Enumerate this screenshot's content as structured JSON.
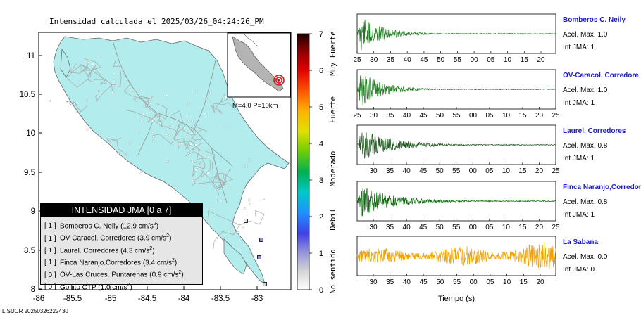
{
  "header": {
    "title": "Intensidad calculada el 2025/03/26_04:24:26_PM"
  },
  "footer": {
    "code": "LISUCR 20250326222430"
  },
  "map": {
    "lat_ticks": [
      "11",
      "10.5",
      "10",
      "9.5",
      "9",
      "8.5",
      "8"
    ],
    "lon_ticks": [
      "-86",
      "-85.5",
      "-85",
      "-84.5",
      "-84",
      "-83.5",
      "-83"
    ],
    "inset_label": "M=4.0 P=10km",
    "land_color": "#b2ecec",
    "road_color": "#a8a8a8",
    "epicenter_color": "#e01010"
  },
  "colorbar": {
    "ticks": [
      "0",
      "1",
      "2",
      "3",
      "4",
      "5",
      "6",
      "7"
    ],
    "category_labels": [
      "No sentido",
      "Debil",
      "Moderado",
      "Fuerte",
      "Muy Fuerte"
    ]
  },
  "legend": {
    "title": "INTENSIDAD JMA [0 a 7]",
    "rows": [
      {
        "intensity": "[ 1 ]",
        "text": "Bomberos C. Neily (12.9 cm/s",
        "sup": "2",
        "close": ")"
      },
      {
        "intensity": "[ 1 ]",
        "text": "OV-Caracol. Corredores (3.9 cm/s",
        "sup": "2",
        "close": ")"
      },
      {
        "intensity": "[ 1 ]",
        "text": "Laurel. Corredores (4.3 cm/s",
        "sup": "2",
        "close": ")"
      },
      {
        "intensity": "[ 1 ]",
        "text": "Finca Naranjo.Corredores (3.4 cm/s",
        "sup": "2",
        "close": ")"
      },
      {
        "intensity": "[ 0 ]",
        "text": "OV-Las Cruces. Puntarenas (0.9 cm/s",
        "sup": "2",
        "close": ")"
      },
      {
        "intensity": "[ 0 ]",
        "text": "Golfito CTP (1.0 cm/s",
        "sup": "2",
        "close": ")"
      }
    ]
  },
  "chart_data": [
    {
      "type": "line",
      "stations": [
        {
          "name": "Bomberos C. Neily",
          "accel_label": "Acel. Max. 1.0",
          "jma_label": "Int JMA: 1",
          "color": "#1e7b1e",
          "time_ticks": [
            "25",
            "30",
            "35",
            "40",
            "45",
            "50",
            "55",
            "00",
            "05",
            "10",
            "15",
            "20"
          ],
          "amplitude": 1.0
        },
        {
          "name": "OV-Caracol, Corredore",
          "accel_label": "Acel. Max. 1.0",
          "jma_label": "Int JMA: 1",
          "color": "#1e7b1e",
          "time_ticks": [
            "25",
            "30",
            "35",
            "40",
            "45",
            "50",
            "55",
            "00",
            "05",
            "10",
            "15",
            "20",
            "25"
          ],
          "amplitude": 1.0
        },
        {
          "name": "Laurel, Corredores",
          "accel_label": "Acel. Max. 0.8",
          "jma_label": "Int JMA: 1",
          "color": "#1e5a1e",
          "time_ticks": [
            "30",
            "35",
            "40",
            "45",
            "50",
            "55",
            "00",
            "05",
            "10",
            "15",
            "20",
            "25"
          ],
          "amplitude": 0.8
        },
        {
          "name": "Finca Naranjo,Corredor",
          "accel_label": "Acel. Max. 0.8",
          "jma_label": "Int JMA: 1",
          "color": "#0a6a0a",
          "time_ticks": [
            "30",
            "35",
            "40",
            "45",
            "50",
            "55",
            "00",
            "05",
            "10",
            "15",
            "20",
            "25"
          ],
          "amplitude": 0.8
        },
        {
          "name": "La Sabana",
          "accel_label": "Acel. Max. 0.0",
          "jma_label": "Int JMA: 0",
          "color": "#f0a000",
          "time_ticks": [
            "30",
            "35",
            "40",
            "45",
            "50",
            "55",
            "00",
            "05",
            "10",
            "15",
            "20"
          ],
          "amplitude": 0.0
        }
      ],
      "xlabel": "Tiempo (s)"
    }
  ]
}
